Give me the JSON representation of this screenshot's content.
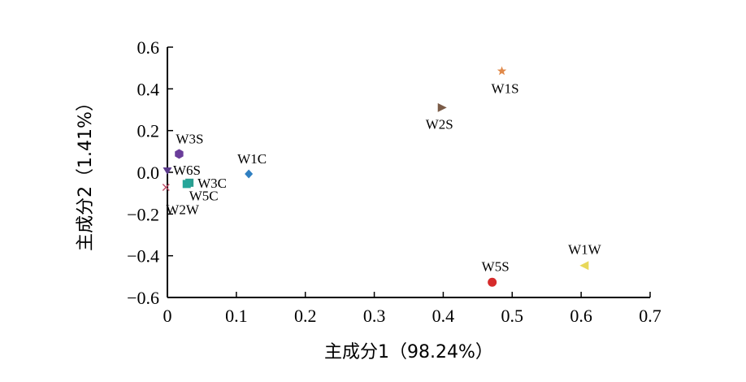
{
  "chart_data": {
    "type": "scatter",
    "xlabel": "主成分1（98.24%）",
    "ylabel": "主成分2（1.41%）",
    "xlim": [
      0,
      0.7
    ],
    "ylim": [
      -0.6,
      0.6
    ],
    "xticks": [
      0,
      0.1,
      0.2,
      0.3,
      0.4,
      0.5,
      0.6,
      0.7
    ],
    "xtick_labels": [
      "0",
      "0.1",
      "0.2",
      "0.3",
      "0.4",
      "0.5",
      "0.6",
      "0.7"
    ],
    "yticks": [
      -0.6,
      -0.4,
      -0.2,
      0,
      0.2,
      0.4,
      0.6
    ],
    "ytick_labels": [
      "−0.6",
      "−0.4",
      "−0.2",
      "0.0",
      "0.2",
      "0.4",
      "0.6"
    ],
    "grid": false,
    "points": [
      {
        "label": "W1S",
        "x": 0.485,
        "y": 0.485,
        "marker": "star",
        "color": "#e0894a"
      },
      {
        "label": "W2S",
        "x": 0.398,
        "y": 0.31,
        "marker": "triangle-right",
        "color": "#7a5b47"
      },
      {
        "label": "W1C",
        "x": 0.118,
        "y": -0.008,
        "marker": "diamond",
        "color": "#2f7fc1"
      },
      {
        "label": "W3S",
        "x": 0.017,
        "y": 0.088,
        "marker": "hexagon",
        "color": "#6a3d9a"
      },
      {
        "label": "W6S",
        "x": 0.0,
        "y": 0.008,
        "marker": "triangle-down",
        "color": "#5b3a8c"
      },
      {
        "label": "W3C",
        "x": 0.032,
        "y": -0.05,
        "marker": "square",
        "color": "#2a9d8f"
      },
      {
        "label": "W5C",
        "x": 0.028,
        "y": -0.056,
        "marker": "square",
        "color": "#26a69a"
      },
      {
        "label": "W2W",
        "x": -0.002,
        "y": -0.072,
        "marker": "x",
        "color": "#c0506a"
      },
      {
        "label": "W5S",
        "x": 0.471,
        "y": -0.527,
        "marker": "circle",
        "color": "#d62b2b"
      },
      {
        "label": "W1W",
        "x": 0.605,
        "y": -0.447,
        "marker": "triangle-left",
        "color": "#e8d85a"
      }
    ]
  }
}
